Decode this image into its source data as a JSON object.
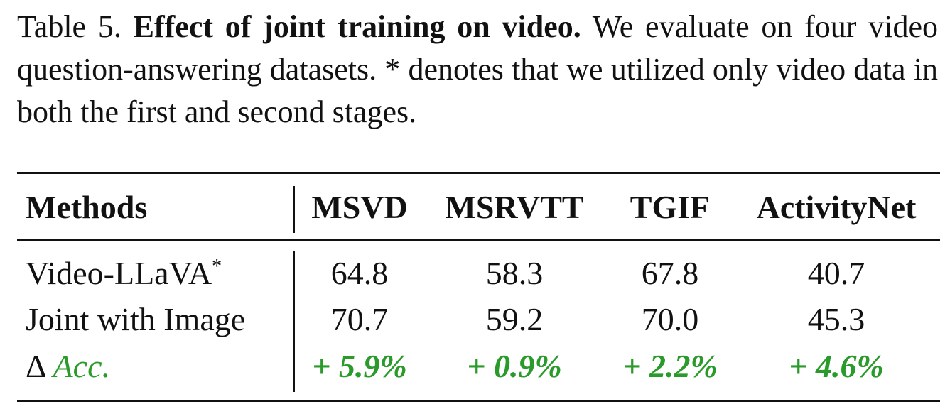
{
  "caption": {
    "label": "Table 5.",
    "title": "Effect of joint training on video.",
    "text": "We evaluate on four video question-answering datasets. * denotes that we utilized only video data in both the first and second stages."
  },
  "table": {
    "headers": [
      "Methods",
      "MSVD",
      "MSRVTT",
      "TGIF",
      "ActivityNet"
    ],
    "rows": [
      {
        "method": "Video-LLaVA",
        "marker": "*",
        "values": [
          "64.8",
          "58.3",
          "67.8",
          "40.7"
        ]
      },
      {
        "method": "Joint with Image",
        "values": [
          "70.7",
          "59.2",
          "70.0",
          "45.3"
        ]
      },
      {
        "method_symbol": "Δ",
        "method_label": "Acc.",
        "values": [
          "+ 5.9%",
          "+ 0.9%",
          "+ 2.2%",
          "+ 4.6%"
        ],
        "color": "#2a9a2a"
      }
    ]
  }
}
